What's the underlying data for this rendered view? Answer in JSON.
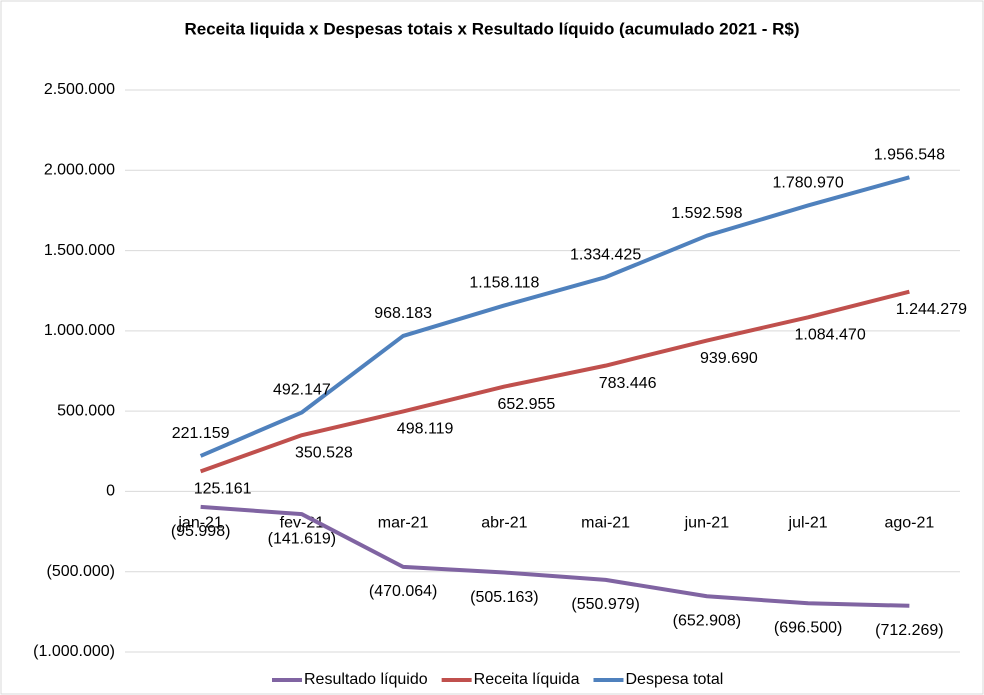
{
  "chart_data": {
    "type": "line",
    "title": "Receita liquida x Despesas totais x Resultado líquido (acumulado 2021 - R$)",
    "categories": [
      "jan-21",
      "fev-21",
      "mar-21",
      "abr-21",
      "mai-21",
      "jun-21",
      "jul-21",
      "ago-21"
    ],
    "series": [
      {
        "name": "Resultado líquido",
        "color": "#8064a2",
        "values": [
          -95998,
          -141619,
          -470064,
          -505163,
          -550979,
          -652908,
          -696500,
          -712269
        ],
        "value_labels": [
          "(95.998)",
          "(141.619)",
          "(470.064)",
          "(505.163)",
          "(550.979)",
          "(652.908)",
          "(696.500)",
          "(712.269)"
        ]
      },
      {
        "name": "Receita líquida",
        "color": "#c0504d",
        "values": [
          125161,
          350528,
          498119,
          652955,
          783446,
          939690,
          1084470,
          1244279
        ],
        "value_labels": [
          "125.161",
          "350.528",
          "498.119",
          "652.955",
          "783.446",
          "939.690",
          "1.084.470",
          "1.244.279"
        ]
      },
      {
        "name": "Despesa total",
        "color": "#4f81bd",
        "values": [
          221159,
          492147,
          968183,
          1158118,
          1334425,
          1592598,
          1780970,
          1956548
        ],
        "value_labels": [
          "221.159",
          "492.147",
          "968.183",
          "1.158.118",
          "1.334.425",
          "1.592.598",
          "1.780.970",
          "1.956.548"
        ]
      }
    ],
    "ylim": [
      -1000000,
      2500000
    ],
    "yticks": [
      {
        "value": -1000000,
        "label": "(1.000.000)"
      },
      {
        "value": -500000,
        "label": "(500.000)"
      },
      0,
      {
        "value": 500000,
        "label": "500.000"
      },
      {
        "value": 1000000,
        "label": "1.000.000"
      },
      {
        "value": 1500000,
        "label": "1.500.000"
      },
      {
        "value": 2000000,
        "label": "2.000.000"
      },
      {
        "value": 2500000,
        "label": "2.500.000"
      }
    ],
    "grid": true,
    "legend": "bottom"
  }
}
